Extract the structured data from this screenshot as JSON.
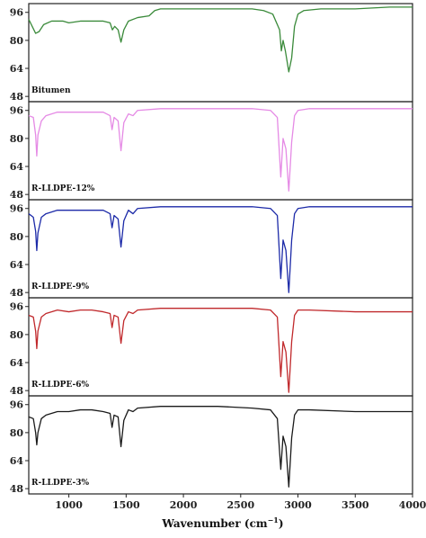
{
  "chart_data": {
    "type": "line",
    "xlabel": "Wavenumber (cm",
    "xlabel_sup": "−1",
    "xlabel_end": ")",
    "ylabel": "",
    "xlim": [
      650,
      4000
    ],
    "ylim": [
      45,
      101
    ],
    "x_ticks": [
      1000,
      1500,
      2000,
      2500,
      3000,
      3500,
      4000
    ],
    "y_ticks": [
      48,
      64,
      80,
      96
    ],
    "panels": [
      {
        "name": "Bitumen",
        "color": "#3a8a3a",
        "points": [
          [
            650,
            92
          ],
          [
            680,
            88
          ],
          [
            710,
            84
          ],
          [
            740,
            85
          ],
          [
            780,
            89
          ],
          [
            850,
            91
          ],
          [
            950,
            91
          ],
          [
            1000,
            90
          ],
          [
            1100,
            91
          ],
          [
            1200,
            91
          ],
          [
            1300,
            91
          ],
          [
            1360,
            90
          ],
          [
            1380,
            86
          ],
          [
            1400,
            88
          ],
          [
            1430,
            86
          ],
          [
            1455,
            79
          ],
          [
            1480,
            86
          ],
          [
            1520,
            91
          ],
          [
            1600,
            93
          ],
          [
            1700,
            94
          ],
          [
            1750,
            97
          ],
          [
            1800,
            98
          ],
          [
            2000,
            98
          ],
          [
            2300,
            98
          ],
          [
            2600,
            98
          ],
          [
            2700,
            97
          ],
          [
            2780,
            95
          ],
          [
            2840,
            86
          ],
          [
            2855,
            74
          ],
          [
            2870,
            80
          ],
          [
            2890,
            74
          ],
          [
            2920,
            62
          ],
          [
            2945,
            70
          ],
          [
            2970,
            88
          ],
          [
            3000,
            95
          ],
          [
            3050,
            97
          ],
          [
            3200,
            98
          ],
          [
            3500,
            98
          ],
          [
            3800,
            99
          ],
          [
            4000,
            99
          ]
        ]
      },
      {
        "name": "R-LLDPE-12%",
        "color": "#e58ae5",
        "points": [
          [
            650,
            93
          ],
          [
            690,
            92
          ],
          [
            710,
            82
          ],
          [
            720,
            70
          ],
          [
            730,
            82
          ],
          [
            760,
            90
          ],
          [
            800,
            93
          ],
          [
            900,
            95
          ],
          [
            1000,
            95
          ],
          [
            1100,
            95
          ],
          [
            1200,
            95
          ],
          [
            1300,
            95
          ],
          [
            1360,
            93
          ],
          [
            1377,
            85
          ],
          [
            1395,
            92
          ],
          [
            1430,
            90
          ],
          [
            1455,
            73
          ],
          [
            1480,
            89
          ],
          [
            1520,
            94
          ],
          [
            1560,
            93
          ],
          [
            1600,
            96
          ],
          [
            1800,
            97
          ],
          [
            2000,
            97
          ],
          [
            2300,
            97
          ],
          [
            2600,
            97
          ],
          [
            2760,
            96
          ],
          [
            2820,
            92
          ],
          [
            2850,
            58
          ],
          [
            2870,
            80
          ],
          [
            2895,
            74
          ],
          [
            2920,
            50
          ],
          [
            2945,
            78
          ],
          [
            2970,
            93
          ],
          [
            3000,
            96
          ],
          [
            3100,
            97
          ],
          [
            3500,
            97
          ],
          [
            4000,
            97
          ]
        ]
      },
      {
        "name": "R-LLDPE-9%",
        "color": "#1c2aa8",
        "points": [
          [
            650,
            93
          ],
          [
            690,
            91
          ],
          [
            710,
            83
          ],
          [
            720,
            72
          ],
          [
            730,
            82
          ],
          [
            760,
            91
          ],
          [
            800,
            93
          ],
          [
            900,
            95
          ],
          [
            1000,
            95
          ],
          [
            1100,
            95
          ],
          [
            1200,
            95
          ],
          [
            1300,
            95
          ],
          [
            1360,
            93
          ],
          [
            1377,
            85
          ],
          [
            1395,
            92
          ],
          [
            1430,
            90
          ],
          [
            1455,
            74
          ],
          [
            1480,
            89
          ],
          [
            1520,
            95
          ],
          [
            1560,
            93
          ],
          [
            1600,
            96
          ],
          [
            1800,
            97
          ],
          [
            2000,
            97
          ],
          [
            2300,
            97
          ],
          [
            2600,
            97
          ],
          [
            2760,
            96
          ],
          [
            2820,
            92
          ],
          [
            2850,
            56
          ],
          [
            2870,
            78
          ],
          [
            2895,
            72
          ],
          [
            2920,
            48
          ],
          [
            2945,
            78
          ],
          [
            2970,
            93
          ],
          [
            3000,
            96
          ],
          [
            3100,
            97
          ],
          [
            3500,
            97
          ],
          [
            4000,
            97
          ]
        ]
      },
      {
        "name": "R-LLDPE-6%",
        "color": "#c0282b",
        "points": [
          [
            650,
            91
          ],
          [
            690,
            90
          ],
          [
            710,
            82
          ],
          [
            720,
            72
          ],
          [
            730,
            82
          ],
          [
            760,
            90
          ],
          [
            800,
            92
          ],
          [
            900,
            94
          ],
          [
            1000,
            93
          ],
          [
            1100,
            94
          ],
          [
            1200,
            94
          ],
          [
            1300,
            93
          ],
          [
            1360,
            92
          ],
          [
            1377,
            84
          ],
          [
            1395,
            91
          ],
          [
            1430,
            90
          ],
          [
            1455,
            75
          ],
          [
            1480,
            88
          ],
          [
            1520,
            93
          ],
          [
            1560,
            92
          ],
          [
            1600,
            94
          ],
          [
            1800,
            95
          ],
          [
            2000,
            95
          ],
          [
            2300,
            95
          ],
          [
            2600,
            95
          ],
          [
            2760,
            94
          ],
          [
            2820,
            90
          ],
          [
            2850,
            56
          ],
          [
            2870,
            76
          ],
          [
            2895,
            70
          ],
          [
            2920,
            47
          ],
          [
            2945,
            76
          ],
          [
            2970,
            91
          ],
          [
            3000,
            94
          ],
          [
            3100,
            94
          ],
          [
            3500,
            93
          ],
          [
            4000,
            93
          ]
        ]
      },
      {
        "name": "R-LLDPE-3%",
        "color": "#1a1a1a",
        "points": [
          [
            650,
            89
          ],
          [
            690,
            88
          ],
          [
            710,
            80
          ],
          [
            720,
            73
          ],
          [
            730,
            80
          ],
          [
            760,
            88
          ],
          [
            800,
            90
          ],
          [
            900,
            92
          ],
          [
            1000,
            92
          ],
          [
            1100,
            93
          ],
          [
            1200,
            93
          ],
          [
            1300,
            92
          ],
          [
            1360,
            91
          ],
          [
            1377,
            83
          ],
          [
            1395,
            90
          ],
          [
            1430,
            89
          ],
          [
            1455,
            72
          ],
          [
            1480,
            87
          ],
          [
            1520,
            93
          ],
          [
            1560,
            92
          ],
          [
            1600,
            94
          ],
          [
            1800,
            95
          ],
          [
            2000,
            95
          ],
          [
            2300,
            95
          ],
          [
            2600,
            94
          ],
          [
            2760,
            93
          ],
          [
            2820,
            88
          ],
          [
            2850,
            59
          ],
          [
            2870,
            78
          ],
          [
            2895,
            72
          ],
          [
            2920,
            49
          ],
          [
            2945,
            77
          ],
          [
            2970,
            90
          ],
          [
            3000,
            93
          ],
          [
            3100,
            93
          ],
          [
            3500,
            92
          ],
          [
            4000,
            92
          ]
        ]
      }
    ]
  }
}
